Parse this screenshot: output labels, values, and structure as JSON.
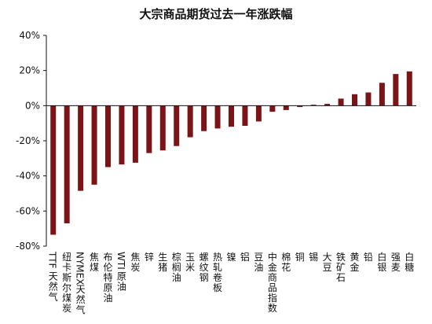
{
  "chart_data": {
    "type": "bar",
    "title": "大宗商品期货过去一年涨跌幅",
    "xlabel": "",
    "ylabel": "",
    "ylim": [
      -80,
      40
    ],
    "yticks": [
      40,
      20,
      0,
      -20,
      -40,
      -60,
      -80
    ],
    "ytick_labels": [
      "40%",
      "20%",
      "0%",
      "-20%",
      "-40%",
      "-60%",
      "-80%"
    ],
    "grid": false,
    "legend": "none",
    "bar_color": "#7b1416",
    "categories": [
      "TTF天然气",
      "纽卡斯尔煤炭",
      "NYMEX天然气",
      "焦煤",
      "布伦特原油",
      "WTI原油",
      "焦炭",
      "锌",
      "生猪",
      "棕榈油",
      "玉米",
      "螺纹钢",
      "热轧卷板",
      "镍",
      "铝",
      "豆油",
      "中金商品指数",
      "棉花",
      "铜",
      "锡",
      "大豆",
      "铁矿石",
      "黄金",
      "铅",
      "白银",
      "强麦",
      "白糖"
    ],
    "values": [
      -73.5,
      -67,
      -48.5,
      -45,
      -35,
      -33.5,
      -32.5,
      -27,
      -25.5,
      -23,
      -18,
      -14.5,
      -13,
      -12,
      -11.5,
      -9,
      -3.5,
      -2.5,
      -0.8,
      0.5,
      1,
      4,
      6.5,
      7.5,
      13,
      18,
      19.5
    ]
  }
}
